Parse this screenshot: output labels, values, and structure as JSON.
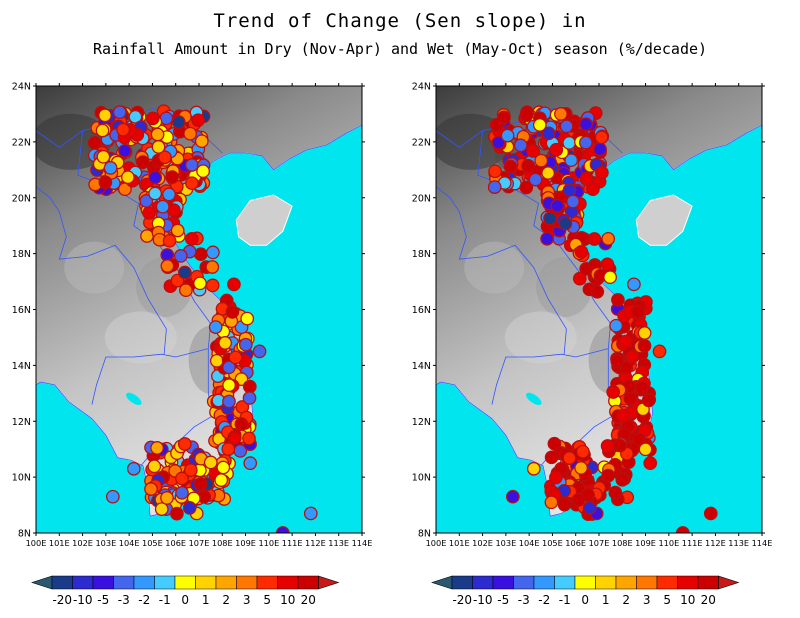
{
  "title_line1": "Trend of Change (Sen slope) in",
  "title_line2": "Rainfall Amount in Dry (Nov-Apr) and Wet (May-Oct) season (%/decade)",
  "colors": {
    "ocean": "#00e5ee",
    "coastline": "#3355ff",
    "marker_outline": "#b81010"
  },
  "lat_labels": [
    "24N",
    "22N",
    "20N",
    "18N",
    "16N",
    "14N",
    "12N",
    "10N",
    "8N"
  ],
  "lon_labels": [
    "100E",
    "101E",
    "102E",
    "103E",
    "104E",
    "105E",
    "106E",
    "107E",
    "108E",
    "109E",
    "110E",
    "111E",
    "112E",
    "113E",
    "114E"
  ],
  "legend": {
    "colors": [
      "#1a3a8a",
      "#2b2bd0",
      "#3a10e0",
      "#4466ee",
      "#3399ff",
      "#44ccff",
      "#ffff00",
      "#ffd200",
      "#ffa500",
      "#ff7700",
      "#ff2a00",
      "#e80000",
      "#cc0000"
    ],
    "end_colors": {
      "low": "#2a5a70",
      "high": "#c81818"
    },
    "labels": [
      "-20",
      "-10",
      "-5",
      "-3",
      "-2",
      "-1",
      "0",
      "1",
      "2",
      "3",
      "5",
      "10",
      "20"
    ]
  },
  "panels": [
    {
      "name": "dry",
      "season": "Dry (Nov-Apr)"
    },
    {
      "name": "wet",
      "season": "Wet (May-Oct)"
    }
  ]
}
